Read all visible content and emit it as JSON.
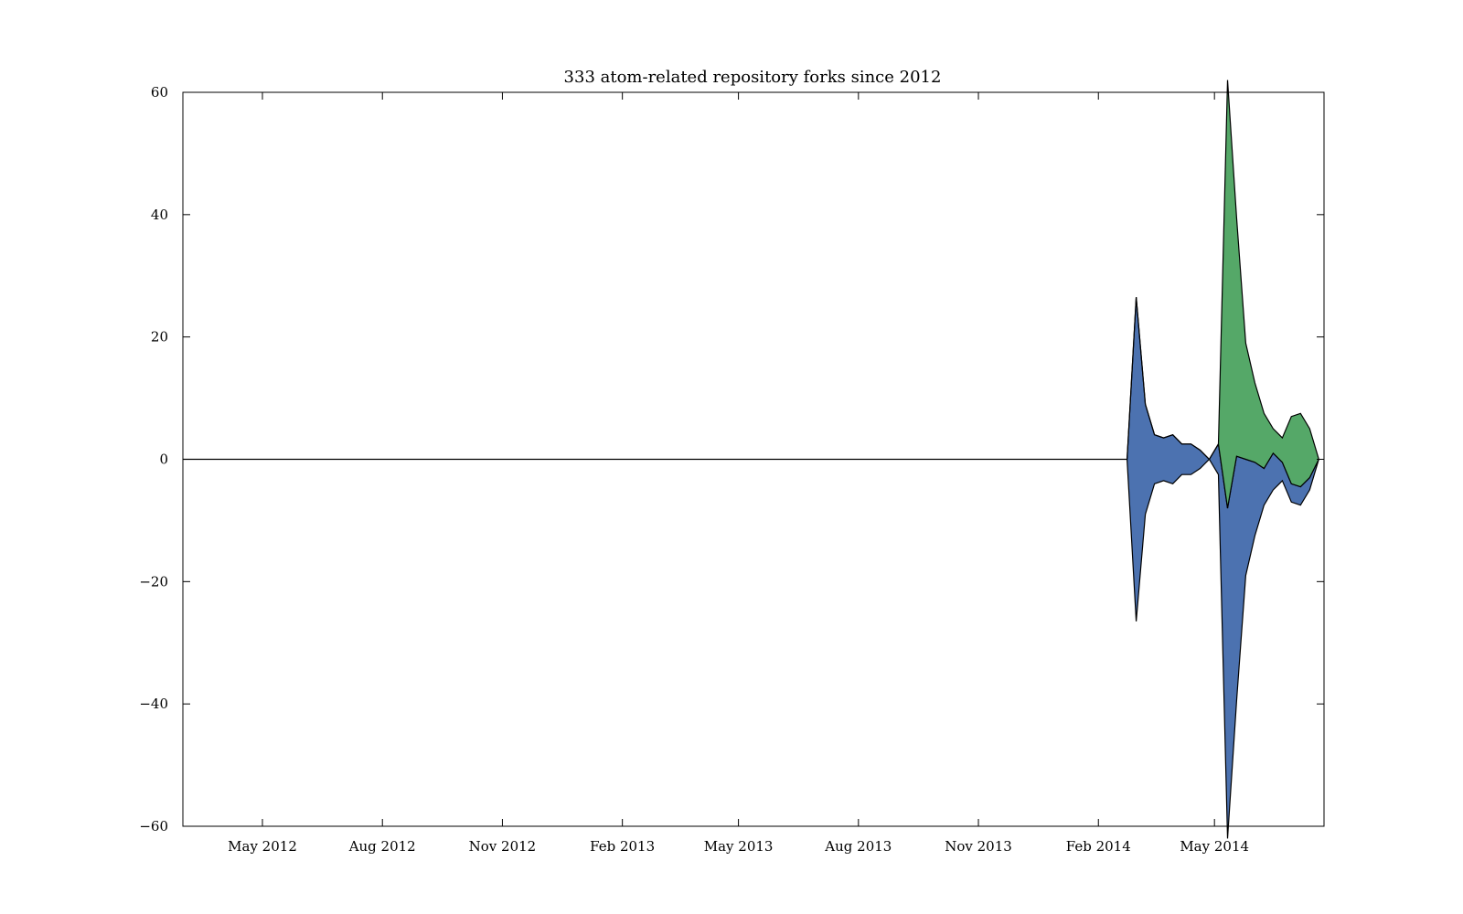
{
  "chart_data": {
    "type": "area",
    "title": "333 atom-related repository forks since 2012",
    "xlabel": "",
    "ylabel": "",
    "layout": "streamgraph (symmetric, wiggle-free, centered at 0)",
    "xlim": [
      "2012-03-01",
      "2014-07-24"
    ],
    "ylim": [
      -60,
      60
    ],
    "grid": false,
    "legend": "none",
    "x_ticks": [
      "May 2012",
      "Aug 2012",
      "Nov 2012",
      "Feb 2013",
      "May 2013",
      "Aug 2013",
      "Nov 2013",
      "Feb 2014",
      "May 2014"
    ],
    "x_tick_dates": [
      "2012-05-01",
      "2012-08-01",
      "2012-11-01",
      "2013-02-01",
      "2013-05-01",
      "2013-08-01",
      "2013-11-01",
      "2014-02-01",
      "2014-05-01"
    ],
    "y_ticks": [
      60,
      40,
      20,
      0,
      -20,
      -40,
      -60
    ],
    "y_tick_labels": [
      "60",
      "40",
      "20",
      "0",
      "−20",
      "−40",
      "−60"
    ],
    "x": [
      "2014-02-23",
      "2014-03-02",
      "2014-03-09",
      "2014-03-16",
      "2014-03-23",
      "2014-03-30",
      "2014-04-06",
      "2014-04-13",
      "2014-04-20",
      "2014-04-27",
      "2014-05-04",
      "2014-05-11",
      "2014-05-18",
      "2014-05-25",
      "2014-06-01",
      "2014-06-08",
      "2014-06-15",
      "2014-06-22",
      "2014-06-29",
      "2014-07-06",
      "2014-07-13",
      "2014-07-20"
    ],
    "series": [
      {
        "color": "#4c72b0",
        "values": [
          0,
          53,
          18,
          8,
          7,
          8,
          5,
          5,
          3,
          0,
          5,
          54,
          40,
          19,
          12,
          6,
          6,
          3,
          3,
          3,
          2,
          0
        ]
      },
      {
        "color": "#55a868",
        "values": [
          0,
          0,
          0,
          0,
          0,
          0,
          0,
          0,
          0,
          0,
          0,
          70,
          39,
          19,
          13,
          9,
          4,
          4,
          11,
          12,
          8,
          0
        ]
      }
    ]
  }
}
